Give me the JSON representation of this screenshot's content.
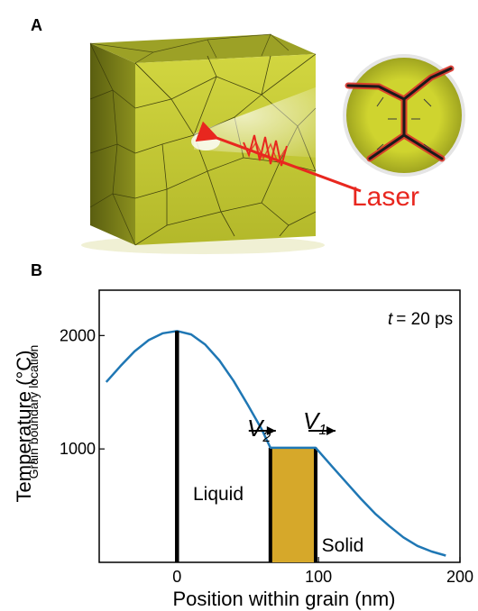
{
  "panel_a": {
    "label": "A",
    "laser_label": "Laser",
    "colors": {
      "block_front": "#c4c833",
      "block_top": "#9ca126",
      "block_side": "#6e7214",
      "laser": "#e8271f",
      "grain_boundary": "#1a1a1a",
      "boundary_glow": "#d9332a",
      "inset_fill": "#c7cd2c"
    }
  },
  "panel_b": {
    "label": "B",
    "time_prefix": "t",
    "time_suffix": "= 20 ps",
    "grain_boundary_label": "Grain boundary location",
    "liquid_label": "Liquid",
    "solid_label": "Solid",
    "v2_label": "V",
    "v2_sub": "2",
    "v1_label": "V",
    "v1_sub": "1",
    "colors": {
      "curve": "#1f77b4",
      "melt_zone": "#d6a82a",
      "boundary_line": "#000000"
    }
  },
  "chart_data": {
    "type": "line",
    "xlabel": "Position within grain (nm)",
    "ylabel": "Temperature (°C)",
    "xlim": [
      -55,
      200
    ],
    "ylim": [
      0,
      2400
    ],
    "xticks": [
      0,
      100,
      200
    ],
    "yticks": [
      1000,
      2000
    ],
    "x": [
      -50,
      -40,
      -30,
      -20,
      -10,
      0,
      10,
      20,
      30,
      40,
      50,
      60,
      66,
      98,
      110,
      120,
      130,
      140,
      150,
      160,
      170,
      180,
      190
    ],
    "y": [
      1590,
      1730,
      1860,
      1960,
      2020,
      2040,
      2010,
      1920,
      1780,
      1600,
      1390,
      1170,
      1010,
      1010,
      840,
      700,
      560,
      430,
      320,
      220,
      145,
      95,
      60
    ],
    "series": [
      {
        "name": "",
        "x_from": -50,
        "x_to": 190
      }
    ],
    "grain_boundary_x": 0,
    "melt_region": {
      "x_start": 66,
      "x_end": 98,
      "temperature": 1010
    },
    "grid": false
  }
}
